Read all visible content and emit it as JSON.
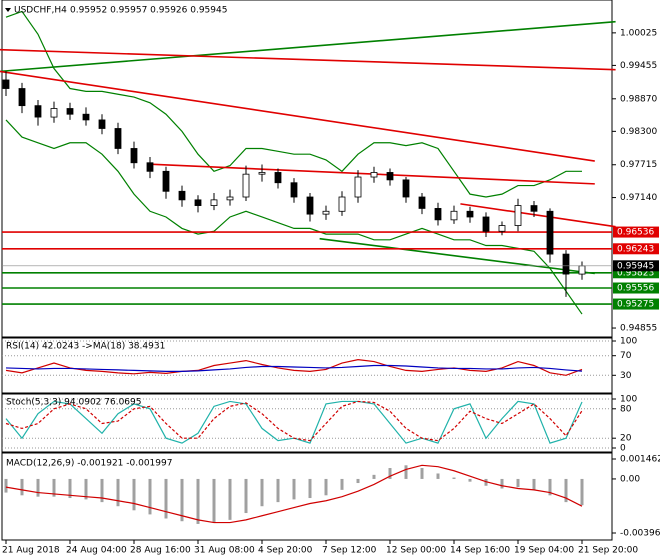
{
  "chart_data": [
    {
      "type": "candlestick",
      "title": "USDCHF,H4",
      "subtitle": "0.95952 0.95957 0.95926 0.95945",
      "categories": [
        "21 Aug 2018",
        null,
        null,
        null,
        "24 Aug 04:00",
        null,
        null,
        null,
        "28 Aug 16:00",
        null,
        null,
        null,
        "31 Aug 08:00",
        null,
        null,
        null,
        "4 Sep 20:00",
        null,
        null,
        null,
        "7 Sep 12:00",
        null,
        null,
        null,
        "12 Sep 00:00",
        null,
        null,
        null,
        "14 Sep 16:00",
        null,
        null,
        null,
        "19 Sep 04:00",
        null,
        null,
        null,
        "21 Sep 20:00"
      ],
      "open": [
        0.992,
        0.9905,
        0.9875,
        0.9855,
        0.987,
        0.986,
        0.985,
        0.9835,
        0.98,
        0.9775,
        0.976,
        0.9725,
        0.971,
        0.97,
        0.971,
        0.9715,
        0.9755,
        0.9758,
        0.974,
        0.9715,
        0.9685,
        0.969,
        0.9715,
        0.975,
        0.9758,
        0.9745,
        0.9715,
        0.9695,
        0.9675,
        0.969,
        0.968,
        0.9655,
        0.9665,
        0.97,
        0.969,
        0.9615,
        0.958
      ],
      "high": [
        0.9935,
        0.9915,
        0.9885,
        0.9882,
        0.988,
        0.9872,
        0.986,
        0.9845,
        0.9812,
        0.9785,
        0.9768,
        0.9735,
        0.9718,
        0.9722,
        0.9728,
        0.977,
        0.9772,
        0.9765,
        0.9748,
        0.9722,
        0.97,
        0.9725,
        0.9762,
        0.9768,
        0.9765,
        0.975,
        0.9722,
        0.9705,
        0.97,
        0.9698,
        0.9688,
        0.9672,
        0.9712,
        0.9708,
        0.9695,
        0.9622,
        0.9602
      ],
      "low": [
        0.9892,
        0.9862,
        0.984,
        0.9845,
        0.985,
        0.984,
        0.9825,
        0.979,
        0.9765,
        0.9748,
        0.9712,
        0.9698,
        0.9688,
        0.9692,
        0.97,
        0.9708,
        0.9742,
        0.973,
        0.9705,
        0.9672,
        0.9675,
        0.9682,
        0.9705,
        0.974,
        0.9735,
        0.9705,
        0.9685,
        0.9665,
        0.9668,
        0.967,
        0.9645,
        0.9648,
        0.9655,
        0.968,
        0.96,
        0.954,
        0.957
      ],
      "close": [
        0.9905,
        0.9875,
        0.9855,
        0.987,
        0.986,
        0.985,
        0.9835,
        0.98,
        0.9775,
        0.976,
        0.9725,
        0.971,
        0.97,
        0.971,
        0.9715,
        0.9755,
        0.9758,
        0.974,
        0.9715,
        0.9685,
        0.969,
        0.9715,
        0.975,
        0.9758,
        0.9745,
        0.9715,
        0.9695,
        0.9675,
        0.969,
        0.968,
        0.9655,
        0.9665,
        0.97,
        0.969,
        0.9615,
        0.958,
        0.95945
      ],
      "bands": [
        {
          "color": "#008000",
          "values": [
            1.003,
            1.004,
            1.0,
            0.994,
            0.9905,
            0.99,
            0.99,
            0.9895,
            0.989,
            0.988,
            0.986,
            0.983,
            0.979,
            0.976,
            0.977,
            0.98,
            0.98,
            0.9795,
            0.979,
            0.979,
            0.978,
            0.976,
            0.979,
            0.981,
            0.981,
            0.9805,
            0.981,
            0.98,
            0.976,
            0.972,
            0.9715,
            0.972,
            0.9735,
            0.9735,
            0.9745,
            0.976,
            0.976
          ]
        },
        {
          "color": "#008000",
          "values": [
            0.985,
            0.982,
            0.981,
            0.98,
            0.981,
            0.981,
            0.979,
            0.976,
            0.972,
            0.969,
            0.968,
            0.966,
            0.965,
            0.9655,
            0.968,
            0.969,
            0.968,
            0.967,
            0.966,
            0.966,
            0.965,
            0.965,
            0.965,
            0.964,
            0.964,
            0.965,
            0.966,
            0.965,
            0.964,
            0.964,
            0.963,
            0.963,
            0.9625,
            0.962,
            0.959,
            0.955,
            0.951
          ]
        }
      ],
      "trendlines": [
        {
          "color": "#008000",
          "x": [
            -0.4,
            38.1
          ],
          "values": [
            0.9935,
            1.0022
          ]
        },
        {
          "color": "#e00000",
          "x": [
            -0.4,
            38.1
          ],
          "values": [
            0.9973,
            0.9938
          ]
        },
        {
          "color": "#e00000",
          "x": [
            -0.4,
            36.8
          ],
          "values": [
            0.9935,
            0.9778
          ]
        },
        {
          "color": "#e00000",
          "x": [
            9,
            36.8
          ],
          "values": [
            0.97725,
            0.9738
          ]
        },
        {
          "color": "#e00000",
          "x": [
            28.4,
            38.1
          ],
          "values": [
            0.9703,
            0.9663
          ]
        },
        {
          "color": "#008000",
          "x": [
            19.6,
            36.8
          ],
          "values": [
            0.9642,
            0.9581
          ]
        }
      ],
      "levels": [
        {
          "value": 0.96536,
          "color": "#e00000"
        },
        {
          "value": 0.96243,
          "color": "#e00000"
        },
        {
          "value": 0.95823,
          "color": "#008000"
        },
        {
          "value": 0.95556,
          "color": "#008000"
        },
        {
          "value": 0.95275,
          "color": "#008000"
        }
      ],
      "last": 0.95945,
      "ylim": [
        0.94733,
        1.00513
      ],
      "yticks": [
        1.00025,
        0.99455,
        {
          "value": 0.9887,
          "label": "0.98870"
        },
        {
          "value": 0.983,
          "label": "0.98300"
        },
        0.97715,
        {
          "value": 0.9714,
          "label": "0.97140"
        },
        0.94855
      ]
    },
    {
      "type": "line",
      "title": "RSI(14) 42.0243 ->MA(18) 38.4931",
      "ylim": [
        0,
        100
      ],
      "yticks": [
        100,
        70,
        30
      ],
      "grid": true,
      "series": [
        {
          "color": "#d00000",
          "values": [
            40,
            35,
            45,
            55,
            45,
            40,
            38,
            35,
            33,
            36,
            34,
            38,
            40,
            50,
            55,
            60,
            52,
            45,
            40,
            38,
            42,
            55,
            62,
            58,
            48,
            40,
            38,
            42,
            45,
            40,
            38,
            45,
            58,
            50,
            35,
            30,
            42
          ]
        },
        {
          "color": "#0000c0",
          "values": [
            45,
            44,
            43,
            44,
            44,
            43,
            42,
            41,
            40,
            39,
            38,
            38,
            39,
            41,
            43,
            46,
            48,
            48,
            47,
            46,
            45,
            46,
            48,
            50,
            50,
            49,
            47,
            45,
            44,
            44,
            43,
            43,
            45,
            46,
            44,
            41,
            38.5
          ]
        }
      ]
    },
    {
      "type": "line",
      "title": "Stoch(5,3,3) 94.0902 76.0695",
      "ylim": [
        0,
        100
      ],
      "yticks": [
        100,
        80,
        20,
        0
      ],
      "grid": true,
      "series": [
        {
          "color": "#20b2aa",
          "values": [
            60,
            20,
            70,
            95,
            90,
            60,
            30,
            70,
            90,
            80,
            20,
            10,
            30,
            85,
            95,
            90,
            40,
            15,
            20,
            10,
            90,
            95,
            95,
            90,
            50,
            10,
            20,
            10,
            80,
            90,
            20,
            60,
            95,
            90,
            10,
            20,
            94
          ]
        },
        {
          "color": "#d00000",
          "dashed": true,
          "values": [
            50,
            40,
            50,
            80,
            90,
            80,
            50,
            55,
            80,
            85,
            50,
            20,
            20,
            60,
            85,
            92,
            70,
            40,
            20,
            15,
            50,
            85,
            95,
            93,
            75,
            40,
            20,
            15,
            40,
            75,
            60,
            50,
            70,
            90,
            60,
            25,
            76
          ]
        }
      ]
    },
    {
      "type": "macd",
      "title": "MACD(12,26,9) -0.001921 -0.001997",
      "ylim": [
        -0.003964,
        0.001462
      ],
      "yticks": [
        0.001462,
        {
          "value": 0,
          "label": "0.00"
        },
        -0.003964
      ],
      "series": [
        {
          "kind": "bar",
          "color": "#a0a0a0",
          "values": [
            -0.001,
            -0.0012,
            -0.0013,
            -0.0013,
            -0.0014,
            -0.0015,
            -0.0017,
            -0.002,
            -0.0023,
            -0.0026,
            -0.0029,
            -0.0031,
            -0.0033,
            -0.0032,
            -0.003,
            -0.0025,
            -0.002,
            -0.0017,
            -0.0015,
            -0.0014,
            -0.0012,
            -0.0008,
            -0.0003,
            0.0003,
            0.0008,
            0.001,
            0.0008,
            0.0004,
            0.0001,
            -0.0002,
            -0.0005,
            -0.0007,
            -0.0006,
            -0.0008,
            -0.0012,
            -0.0017,
            -0.001921
          ]
        },
        {
          "kind": "line",
          "color": "#d00000",
          "values": [
            -0.0006,
            -0.0008,
            -0.001,
            -0.0011,
            -0.0012,
            -0.0013,
            -0.0014,
            -0.0016,
            -0.0018,
            -0.0021,
            -0.0024,
            -0.0027,
            -0.003,
            -0.0032,
            -0.0032,
            -0.003,
            -0.0027,
            -0.0024,
            -0.0021,
            -0.0018,
            -0.0016,
            -0.0013,
            -0.0009,
            -0.0004,
            0.0002,
            0.0007,
            0.001,
            0.0009,
            0.0006,
            0.0002,
            -0.0002,
            -0.0005,
            -0.0007,
            -0.0008,
            -0.001,
            -0.0014,
            -0.001997
          ]
        }
      ]
    }
  ]
}
